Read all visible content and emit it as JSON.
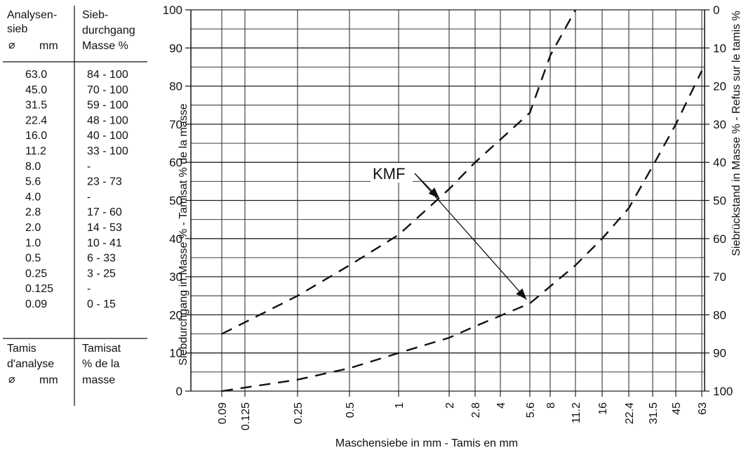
{
  "table": {
    "header_left": [
      "Analysen-",
      "sieb",
      "mm"
    ],
    "header_left_symbol": "⌀",
    "header_right": [
      "Sieb-",
      "durchgang",
      "Masse %"
    ],
    "rows": [
      {
        "sieve": "63.0",
        "passing": "84 - 100"
      },
      {
        "sieve": "45.0",
        "passing": "70 - 100"
      },
      {
        "sieve": "31.5",
        "passing": "59 - 100"
      },
      {
        "sieve": "22.4",
        "passing": "48 - 100"
      },
      {
        "sieve": "16.0",
        "passing": "40 - 100"
      },
      {
        "sieve": "11.2",
        "passing": "33 - 100"
      },
      {
        "sieve": "8.0",
        "passing": "-"
      },
      {
        "sieve": "5.6",
        "passing": "23 - 73"
      },
      {
        "sieve": "4.0",
        "passing": "-"
      },
      {
        "sieve": "2.8",
        "passing": "17 - 60"
      },
      {
        "sieve": "2.0",
        "passing": "14 - 53"
      },
      {
        "sieve": "1.0",
        "passing": "10 - 41"
      },
      {
        "sieve": "0.5",
        "passing": "6 - 33"
      },
      {
        "sieve": "0.25",
        "passing": "3 - 25"
      },
      {
        "sieve": "0.125",
        "passing": "-"
      },
      {
        "sieve": "0.09",
        "passing": "0 - 15"
      }
    ],
    "footer_left": [
      "Tamis",
      "d'analyse",
      "mm"
    ],
    "footer_left_symbol": "⌀",
    "footer_right": [
      "Tamisat",
      "% de la",
      "masse"
    ]
  },
  "chart_data": {
    "type": "line",
    "xlabel": "Maschensiebe in mm  -  Tamis en mm",
    "ylabel": "Siebdurchgang in Masse %  -  Tamisat % de la masse",
    "ylabel_right": "Siebrückstand in Masse %  -  Refus sur le tamis %",
    "x_ticks": [
      "0.09",
      "0.125",
      "0.25",
      "0.5",
      "1",
      "2",
      "2.8",
      "4",
      "5.6",
      "8",
      "11.2",
      "16",
      "22.4",
      "31.5",
      "45",
      "63"
    ],
    "x_tick_values": [
      0.09,
      0.125,
      0.25,
      0.5,
      1,
      2,
      2.8,
      4,
      5.6,
      8,
      11.2,
      16,
      22.4,
      31.5,
      45,
      63
    ],
    "ylim": [
      0,
      100
    ],
    "y_ticks": [
      0,
      10,
      20,
      30,
      40,
      50,
      60,
      70,
      80,
      90,
      100
    ],
    "y_ticks_right": [
      100,
      90,
      80,
      70,
      60,
      50,
      40,
      30,
      20,
      10,
      0
    ],
    "grid": true,
    "series": [
      {
        "line_style": "dashed",
        "points": [
          [
            0.09,
            15
          ],
          [
            0.25,
            25
          ],
          [
            0.5,
            33
          ],
          [
            1,
            41
          ],
          [
            2,
            53
          ],
          [
            2.8,
            60
          ],
          [
            5.6,
            73
          ],
          [
            8,
            88
          ],
          [
            11.2,
            100
          ]
        ]
      },
      {
        "line_style": "dashed",
        "points": [
          [
            0.09,
            0
          ],
          [
            0.25,
            3
          ],
          [
            0.5,
            6
          ],
          [
            1,
            10
          ],
          [
            2,
            14
          ],
          [
            2.8,
            17
          ],
          [
            5.6,
            23
          ],
          [
            11.2,
            33
          ],
          [
            16,
            40
          ],
          [
            22.4,
            48
          ],
          [
            31.5,
            59
          ],
          [
            45,
            70
          ],
          [
            63,
            84
          ]
        ]
      }
    ],
    "annotation": {
      "text": "KMF",
      "arrow_targets": [
        [
          1.75,
          50.5
        ],
        [
          5.4,
          24
        ]
      ]
    }
  }
}
